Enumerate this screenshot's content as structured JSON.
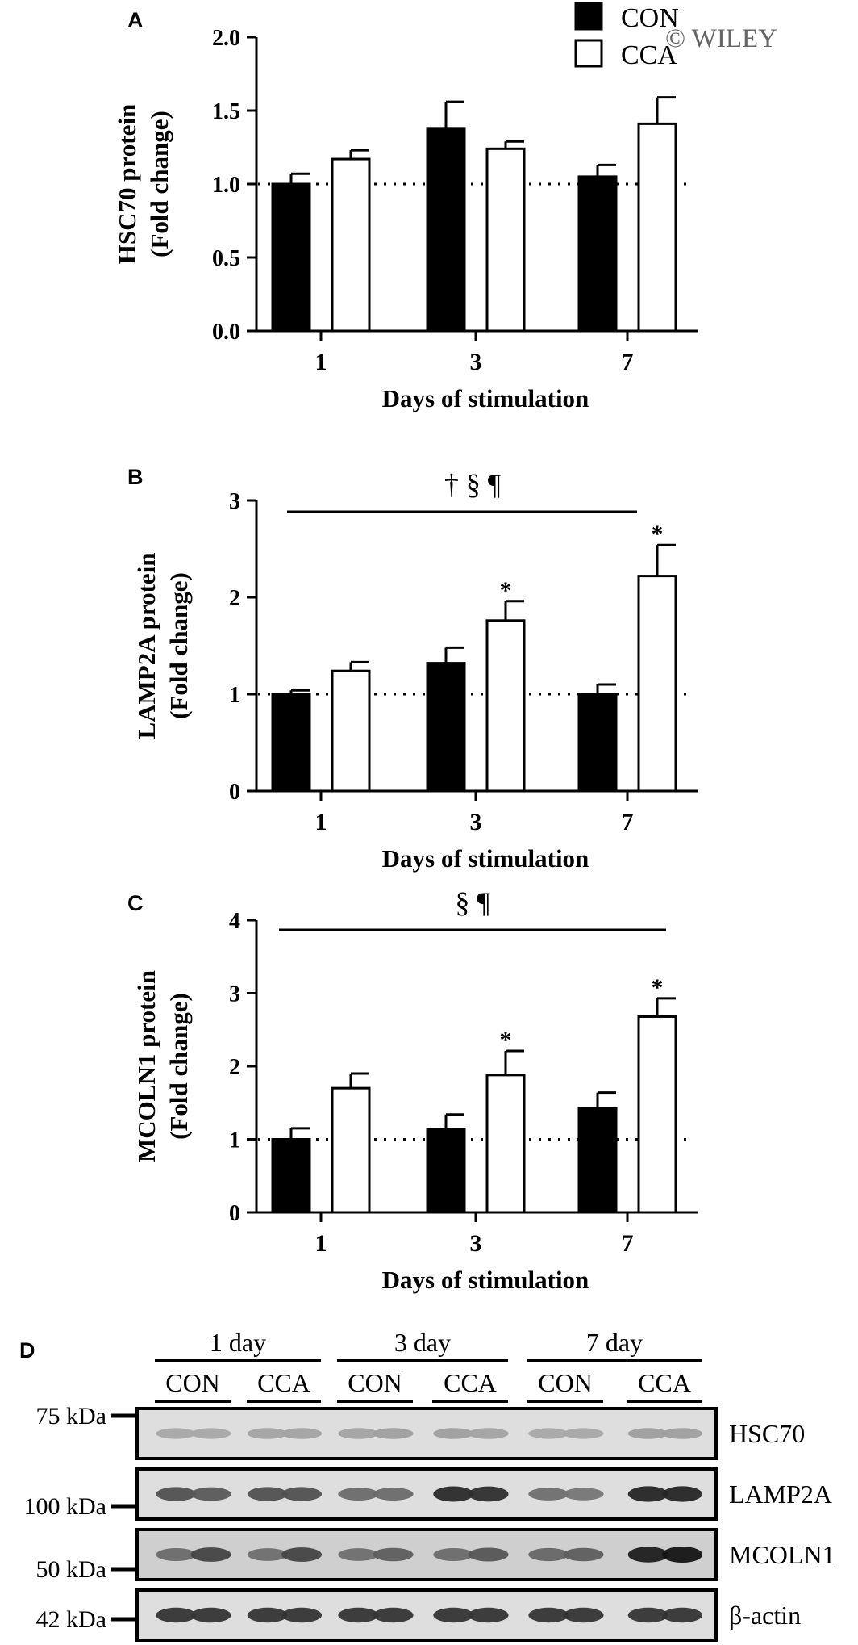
{
  "watermark": "© WILEY",
  "legend": {
    "placement": "top-right",
    "entries": [
      {
        "name": "CON",
        "fill": "#000000"
      },
      {
        "name": "CCA",
        "fill": "#ffffff"
      }
    ]
  },
  "colors": {
    "con": "#000000",
    "cca": "#ffffff",
    "axis": "#000000"
  },
  "chart_data": [
    {
      "panel": "A",
      "type": "bar",
      "ylabel": [
        "HSC70 protein",
        "(Fold change)"
      ],
      "xlabel": "Days of stimulation",
      "categories": [
        "1",
        "3",
        "7"
      ],
      "ylim": [
        0,
        2.0
      ],
      "yticks": [
        "0.0",
        "0.5",
        "1.0",
        "1.5",
        "2.0"
      ],
      "reference_line": 1.0,
      "series": [
        {
          "name": "CON",
          "values": [
            1.0,
            1.38,
            1.05
          ],
          "errors": [
            0.07,
            0.18,
            0.08
          ]
        },
        {
          "name": "CCA",
          "values": [
            1.17,
            1.24,
            1.41
          ],
          "errors": [
            0.06,
            0.05,
            0.18
          ]
        }
      ],
      "significance": {
        "text": "",
        "bracket": false
      },
      "markers": []
    },
    {
      "panel": "B",
      "type": "bar",
      "ylabel": [
        "LAMP2A protein",
        "(Fold change)"
      ],
      "xlabel": "Days of stimulation",
      "categories": [
        "1",
        "3",
        "7"
      ],
      "ylim": [
        0,
        3
      ],
      "yticks": [
        "0",
        "1",
        "2",
        "3"
      ],
      "reference_line": 1,
      "series": [
        {
          "name": "CON",
          "values": [
            1.0,
            1.32,
            1.0
          ],
          "errors": [
            0.04,
            0.16,
            0.1
          ]
        },
        {
          "name": "CCA",
          "values": [
            1.24,
            1.76,
            2.22
          ],
          "errors": [
            0.09,
            0.2,
            0.32
          ]
        }
      ],
      "significance": {
        "text": "†  §  ¶",
        "bracket": true
      },
      "markers": [
        {
          "category": "3",
          "series": "CCA",
          "text": "*"
        },
        {
          "category": "7",
          "series": "CCA",
          "text": "*"
        }
      ]
    },
    {
      "panel": "C",
      "type": "bar",
      "ylabel": [
        "MCOLN1 protein",
        "(Fold change)"
      ],
      "xlabel": "Days of stimulation",
      "categories": [
        "1",
        "3",
        "7"
      ],
      "ylim": [
        0,
        4
      ],
      "yticks": [
        "0",
        "1",
        "2",
        "3",
        "4"
      ],
      "reference_line": 1,
      "series": [
        {
          "name": "CON",
          "values": [
            1.0,
            1.14,
            1.42
          ],
          "errors": [
            0.15,
            0.2,
            0.22
          ]
        },
        {
          "name": "CCA",
          "values": [
            1.7,
            1.88,
            2.68
          ],
          "errors": [
            0.2,
            0.33,
            0.25
          ]
        }
      ],
      "significance": {
        "text": "§  ¶",
        "bracket": true
      },
      "markers": [
        {
          "category": "3",
          "series": "CCA",
          "text": "*"
        },
        {
          "category": "7",
          "series": "CCA",
          "text": "*"
        }
      ]
    }
  ],
  "blot": {
    "panel": "D",
    "groups": [
      {
        "label": "1 day",
        "conditions": [
          "CON",
          "CCA"
        ]
      },
      {
        "label": "3 day",
        "conditions": [
          "CON",
          "CCA"
        ]
      },
      {
        "label": "7 day",
        "conditions": [
          "CON",
          "CCA"
        ]
      }
    ],
    "lanes_per_condition": 2,
    "rows": [
      {
        "protein": "HSC70",
        "marker": "75 kDa",
        "intensities": [
          0.32,
          0.32,
          0.34,
          0.34,
          0.34,
          0.36,
          0.36,
          0.34,
          0.32,
          0.32,
          0.36,
          0.36
        ]
      },
      {
        "protein": "LAMP2A",
        "marker": "100 kDa",
        "intensities": [
          0.72,
          0.68,
          0.72,
          0.72,
          0.6,
          0.6,
          0.9,
          0.88,
          0.58,
          0.55,
          0.92,
          0.92
        ]
      },
      {
        "protein": "MCOLN1",
        "marker": "50 kDa",
        "intensities": [
          0.6,
          0.78,
          0.58,
          0.78,
          0.58,
          0.66,
          0.6,
          0.7,
          0.62,
          0.66,
          0.96,
          1.0
        ]
      },
      {
        "protein": "β-actin",
        "marker": "42 kDa",
        "intensities": [
          0.85,
          0.85,
          0.85,
          0.85,
          0.85,
          0.85,
          0.85,
          0.85,
          0.85,
          0.85,
          0.85,
          0.85
        ]
      }
    ]
  }
}
